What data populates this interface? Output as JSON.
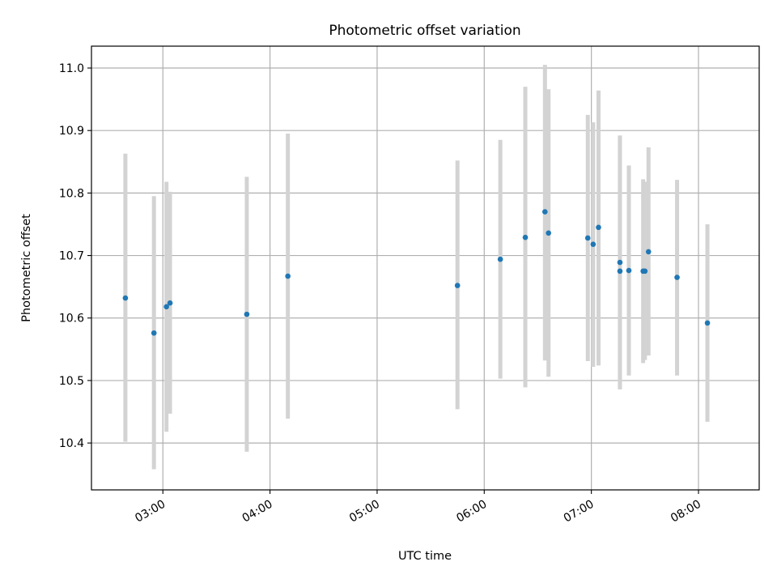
{
  "chart_data": {
    "type": "scatter",
    "title": "Photometric offset variation",
    "xlabel": "UTC time",
    "ylabel": "Photometric offset",
    "x_unit": "UTC time (HH:MM)",
    "xlim": [
      "02:20",
      "08:34"
    ],
    "ylim": [
      10.325,
      11.035
    ],
    "grid": true,
    "x_ticks": [
      "03:00",
      "04:00",
      "05:00",
      "06:00",
      "07:00",
      "08:00"
    ],
    "y_ticks": [
      "10.4",
      "10.5",
      "10.6",
      "10.7",
      "10.8",
      "10.9",
      "11.0"
    ],
    "marker_color": "#1f77b4",
    "errorbar_color": "#d3d3d3",
    "points": [
      {
        "x": "02:39",
        "y": 10.632,
        "y_low": 10.402,
        "y_high": 10.863
      },
      {
        "x": "02:55",
        "y": 10.576,
        "y_low": 10.358,
        "y_high": 10.795
      },
      {
        "x": "03:02",
        "y": 10.618,
        "y_low": 10.418,
        "y_high": 10.818
      },
      {
        "x": "03:04",
        "y": 10.624,
        "y_low": 10.447,
        "y_high": 10.802
      },
      {
        "x": "03:47",
        "y": 10.606,
        "y_low": 10.386,
        "y_high": 10.826
      },
      {
        "x": "04:10",
        "y": 10.667,
        "y_low": 10.439,
        "y_high": 10.895
      },
      {
        "x": "05:45",
        "y": 10.652,
        "y_low": 10.454,
        "y_high": 10.852
      },
      {
        "x": "06:09",
        "y": 10.694,
        "y_low": 10.503,
        "y_high": 10.885
      },
      {
        "x": "06:23",
        "y": 10.729,
        "y_low": 10.489,
        "y_high": 10.97
      },
      {
        "x": "06:34",
        "y": 10.77,
        "y_low": 10.532,
        "y_high": 11.005
      },
      {
        "x": "06:36",
        "y": 10.736,
        "y_low": 10.506,
        "y_high": 10.966
      },
      {
        "x": "06:58",
        "y": 10.728,
        "y_low": 10.531,
        "y_high": 10.925
      },
      {
        "x": "07:01",
        "y": 10.718,
        "y_low": 10.522,
        "y_high": 10.913
      },
      {
        "x": "07:04",
        "y": 10.745,
        "y_low": 10.524,
        "y_high": 10.964
      },
      {
        "x": "07:16",
        "y": 10.689,
        "y_low": 10.486,
        "y_high": 10.892
      },
      {
        "x": "07:16",
        "y": 10.675,
        "y_low": 10.486,
        "y_high": 10.892
      },
      {
        "x": "07:21",
        "y": 10.676,
        "y_low": 10.508,
        "y_high": 10.844
      },
      {
        "x": "07:29",
        "y": 10.675,
        "y_low": 10.528,
        "y_high": 10.822
      },
      {
        "x": "07:30",
        "y": 10.675,
        "y_low": 10.533,
        "y_high": 10.818
      },
      {
        "x": "07:32",
        "y": 10.706,
        "y_low": 10.54,
        "y_high": 10.873
      },
      {
        "x": "07:48",
        "y": 10.665,
        "y_low": 10.508,
        "y_high": 10.821
      },
      {
        "x": "08:05",
        "y": 10.592,
        "y_low": 10.434,
        "y_high": 10.75
      }
    ]
  }
}
